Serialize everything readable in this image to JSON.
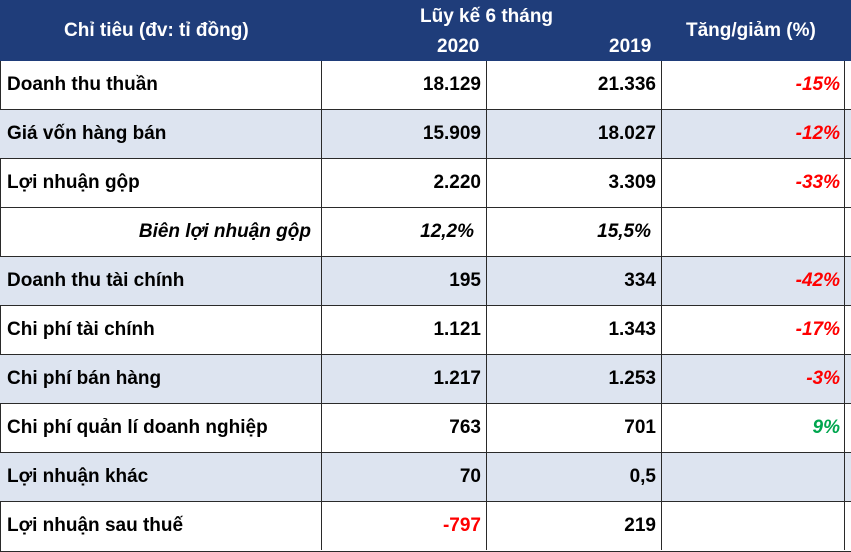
{
  "header": {
    "col_indicator": "Chỉ tiêu (đv: tỉ đồng)",
    "col_group": "Lũy kế 6 tháng",
    "col_2020": "2020",
    "col_2019": "2019",
    "col_change": "Tăng/giảm (%)"
  },
  "rows": [
    {
      "label": "Doanh thu thuần",
      "v2020": "18.129",
      "v2019": "21.336",
      "change": "-15%"
    },
    {
      "label": "Giá vốn hàng bán",
      "v2020": "15.909",
      "v2019": "18.027",
      "change": "-12%"
    },
    {
      "label": "Lợi nhuận gộp",
      "v2020": "2.220",
      "v2019": "3.309",
      "change": "-33%"
    },
    {
      "label": "Biên lợi nhuận gộp",
      "v2020": "12,2%",
      "v2019": "15,5%",
      "change": ""
    },
    {
      "label": "Doanh thu tài chính",
      "v2020": "195",
      "v2019": "334",
      "change": "-42%"
    },
    {
      "label": "Chi phí tài chính",
      "v2020": "1.121",
      "v2019": "1.343",
      "change": "-17%"
    },
    {
      "label": "Chi phí bán hàng",
      "v2020": "1.217",
      "v2019": "1.253",
      "change": "-3%"
    },
    {
      "label": "Chi phí quản lí doanh nghiệp",
      "v2020": "763",
      "v2019": "701",
      "change": "9%"
    },
    {
      "label": "Lợi nhuận khác",
      "v2020": "70",
      "v2019": "0,5",
      "change": ""
    },
    {
      "label": "Lợi nhuận sau thuế",
      "v2020": "-797",
      "v2019": "219",
      "change": ""
    }
  ],
  "colors": {
    "header_bg": "#1f3d7a",
    "shaded_row": "#dde4f0",
    "negative": "#ff0000",
    "positive": "#00a64f"
  }
}
